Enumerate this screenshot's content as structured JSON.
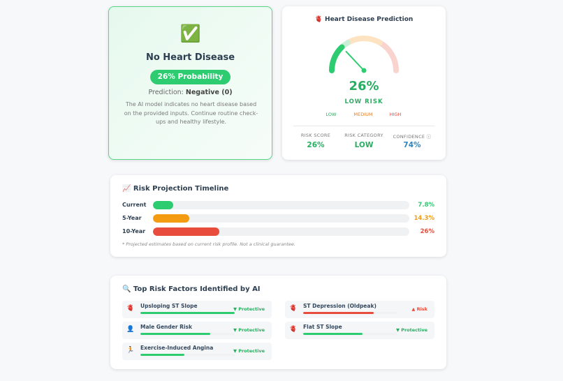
{
  "result_card": {
    "icon": "✅",
    "title": "No Heart Disease",
    "badge": "26% Probability",
    "prediction_label": "Prediction:",
    "prediction_value": "Negative (0)",
    "description": "The AI model indicates no heart disease based on the provided inputs. Continue routine check-ups and healthy lifestyle."
  },
  "gauge_card": {
    "title": "🫀 Heart Disease Prediction",
    "gauge": {
      "value": 26,
      "range": [
        0,
        100
      ],
      "color": "#2ecc71"
    },
    "value_label": "26%",
    "risk_level": "LOW RISK",
    "scale_labels": [
      "LOW",
      "MEDIUM",
      "HIGH"
    ],
    "stats": [
      {
        "label": "RISK SCORE",
        "value": "26%",
        "color": "#27ae60"
      },
      {
        "label": "RISK CATEGORY",
        "value": "LOW",
        "color": "#27ae60"
      },
      {
        "label": "CONFIDENCE ⓘ",
        "value": "74%",
        "color": "#2e86c1"
      }
    ]
  },
  "timeline": {
    "title": "📈 Risk Projection Timeline",
    "range": [
      0,
      100
    ],
    "rows": [
      {
        "label": "Current",
        "value": 7.8,
        "value_label": "7.8%",
        "color": "#2ecc71"
      },
      {
        "label": "5-Year",
        "value": 14.3,
        "value_label": "14.3%",
        "color": "#f39c12"
      },
      {
        "label": "10-Year",
        "value": 26,
        "value_label": "26%",
        "color": "#e74c3c"
      }
    ],
    "note": "* Projected estimates based on current risk profile. Not a clinical guarantee."
  },
  "risk_factors": {
    "title": "🔍 Top Risk Factors Identified by AI",
    "range": [
      0,
      100
    ],
    "items": [
      {
        "icon": "🫀",
        "name": "Upsloping ST Slope",
        "value": 100,
        "color": "#2ecc71",
        "tag": "▼ Protective",
        "tag_color": "#27ae60"
      },
      {
        "icon": "🫀",
        "name": "ST Depression (Oldpeak)",
        "value": 75,
        "color": "#e74c3c",
        "tag": "▲ Risk",
        "tag_color": "#e74c3c"
      },
      {
        "icon": "👤",
        "name": "Male Gender Risk",
        "value": 74,
        "color": "#2ecc71",
        "tag": "▼ Protective",
        "tag_color": "#27ae60"
      },
      {
        "icon": "🫀",
        "name": "Flat ST Slope",
        "value": 63,
        "color": "#2ecc71",
        "tag": "▼ Protective",
        "tag_color": "#27ae60"
      },
      {
        "icon": "🏃",
        "name": "Exercise-Induced Angina",
        "value": 47,
        "color": "#2ecc71",
        "tag": "▼ Protective",
        "tag_color": "#27ae60"
      }
    ]
  }
}
